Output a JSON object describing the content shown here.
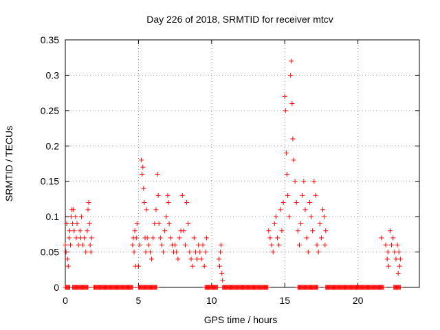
{
  "chart_data": {
    "type": "scatter",
    "title": "Day 226 of 2018, SRMTID for receiver mtcv",
    "xlabel": "GPS time / hours",
    "ylabel": "SRMTID / TECUs",
    "xlim": [
      0,
      24.2
    ],
    "ylim": [
      0,
      0.35
    ],
    "x_ticks": [
      0,
      5,
      10,
      15,
      20
    ],
    "x_tick_labels": [
      "0",
      "5",
      "10",
      "15",
      "20"
    ],
    "y_ticks": [
      0,
      0.05,
      0.1,
      0.15,
      0.2,
      0.25,
      0.3,
      0.35
    ],
    "y_tick_labels": [
      "0",
      "0.05",
      "0.1",
      "0.15",
      "0.2",
      "0.25",
      "0.3",
      "0.35"
    ],
    "grid": true,
    "marker": "plus",
    "color": "#ff0000",
    "series": [
      {
        "name": "SRMTID",
        "points": [
          [
            0.0,
            0.06
          ],
          [
            0.05,
            0.05
          ],
          [
            0.1,
            0.09
          ],
          [
            0.15,
            0.04
          ],
          [
            0.2,
            0.03
          ],
          [
            0.25,
            0.07
          ],
          [
            0.3,
            0.08
          ],
          [
            0.35,
            0.06
          ],
          [
            0.4,
            0.1
          ],
          [
            0.45,
            0.11
          ],
          [
            0.5,
            0.09
          ],
          [
            0.55,
            0.11
          ],
          [
            0.6,
            0.08
          ],
          [
            0.7,
            0.1
          ],
          [
            0.75,
            0.07
          ],
          [
            0.8,
            0.09
          ],
          [
            0.9,
            0.06
          ],
          [
            1.0,
            0.08
          ],
          [
            1.05,
            0.07
          ],
          [
            1.1,
            0.1
          ],
          [
            1.2,
            0.06
          ],
          [
            1.3,
            0.07
          ],
          [
            1.4,
            0.05
          ],
          [
            1.5,
            0.08
          ],
          [
            1.55,
            0.11
          ],
          [
            1.6,
            0.12
          ],
          [
            1.65,
            0.09
          ],
          [
            1.7,
            0.06
          ],
          [
            1.75,
            0.05
          ],
          [
            1.8,
            0.07
          ],
          [
            4.6,
            0.06
          ],
          [
            4.65,
            0.07
          ],
          [
            4.7,
            0.05
          ],
          [
            4.75,
            0.08
          ],
          [
            4.8,
            0.03
          ],
          [
            4.85,
            0.07
          ],
          [
            4.9,
            0.09
          ],
          [
            5.0,
            0.03
          ],
          [
            5.1,
            0.06
          ],
          [
            5.2,
            0.18
          ],
          [
            5.25,
            0.16
          ],
          [
            5.3,
            0.17
          ],
          [
            5.35,
            0.14
          ],
          [
            5.4,
            0.12
          ],
          [
            5.45,
            0.07
          ],
          [
            5.5,
            0.05
          ],
          [
            5.55,
            0.11
          ],
          [
            5.6,
            0.07
          ],
          [
            5.7,
            0.06
          ],
          [
            5.8,
            0.05
          ],
          [
            5.9,
            0.04
          ],
          [
            6.0,
            0.07
          ],
          [
            6.1,
            0.09
          ],
          [
            6.2,
            0.11
          ],
          [
            6.3,
            0.16
          ],
          [
            6.35,
            0.13
          ],
          [
            6.4,
            0.09
          ],
          [
            6.5,
            0.07
          ],
          [
            6.6,
            0.06
          ],
          [
            6.7,
            0.05
          ],
          [
            6.8,
            0.08
          ],
          [
            6.9,
            0.1
          ],
          [
            7.0,
            0.13
          ],
          [
            7.05,
            0.12
          ],
          [
            7.1,
            0.09
          ],
          [
            7.2,
            0.07
          ],
          [
            7.3,
            0.06
          ],
          [
            7.4,
            0.05
          ],
          [
            7.5,
            0.06
          ],
          [
            7.6,
            0.05
          ],
          [
            7.7,
            0.04
          ],
          [
            7.8,
            0.07
          ],
          [
            7.9,
            0.08
          ],
          [
            8.0,
            0.13
          ],
          [
            8.1,
            0.08
          ],
          [
            8.2,
            0.06
          ],
          [
            8.3,
            0.12
          ],
          [
            8.4,
            0.09
          ],
          [
            8.5,
            0.05
          ],
          [
            8.6,
            0.04
          ],
          [
            8.7,
            0.03
          ],
          [
            8.8,
            0.07
          ],
          [
            8.9,
            0.05
          ],
          [
            9.0,
            0.04
          ],
          [
            9.1,
            0.06
          ],
          [
            9.2,
            0.05
          ],
          [
            9.3,
            0.04
          ],
          [
            9.4,
            0.06
          ],
          [
            9.5,
            0.03
          ],
          [
            9.6,
            0.05
          ],
          [
            9.65,
            0.07
          ],
          [
            10.5,
            0.04
          ],
          [
            10.55,
            0.03
          ],
          [
            10.6,
            0.05
          ],
          [
            10.65,
            0.06
          ],
          [
            10.7,
            0.02
          ],
          [
            10.75,
            0.01
          ],
          [
            13.9,
            0.08
          ],
          [
            14.0,
            0.07
          ],
          [
            14.1,
            0.06
          ],
          [
            14.2,
            0.05
          ],
          [
            14.3,
            0.09
          ],
          [
            14.4,
            0.1
          ],
          [
            14.5,
            0.07
          ],
          [
            14.6,
            0.06
          ],
          [
            14.7,
            0.11
          ],
          [
            14.8,
            0.08
          ],
          [
            14.9,
            0.12
          ],
          [
            15.0,
            0.27
          ],
          [
            15.05,
            0.25
          ],
          [
            15.1,
            0.19
          ],
          [
            15.15,
            0.16
          ],
          [
            15.2,
            0.13
          ],
          [
            15.3,
            0.1
          ],
          [
            15.4,
            0.3
          ],
          [
            15.45,
            0.32
          ],
          [
            15.5,
            0.26
          ],
          [
            15.55,
            0.21
          ],
          [
            15.6,
            0.18
          ],
          [
            15.7,
            0.15
          ],
          [
            15.8,
            0.12
          ],
          [
            15.9,
            0.08
          ],
          [
            16.0,
            0.06
          ],
          [
            16.1,
            0.09
          ],
          [
            16.2,
            0.13
          ],
          [
            16.3,
            0.15
          ],
          [
            16.4,
            0.11
          ],
          [
            16.5,
            0.07
          ],
          [
            16.6,
            0.05
          ],
          [
            16.7,
            0.12
          ],
          [
            16.8,
            0.1
          ],
          [
            16.9,
            0.08
          ],
          [
            17.0,
            0.15
          ],
          [
            17.1,
            0.13
          ],
          [
            17.2,
            0.06
          ],
          [
            17.3,
            0.05
          ],
          [
            17.4,
            0.09
          ],
          [
            17.5,
            0.07
          ],
          [
            17.6,
            0.11
          ],
          [
            17.7,
            0.1
          ],
          [
            17.75,
            0.06
          ],
          [
            17.8,
            0.08
          ],
          [
            21.6,
            0.07
          ],
          [
            21.9,
            0.06
          ],
          [
            22.0,
            0.04
          ],
          [
            22.05,
            0.05
          ],
          [
            22.1,
            0.03
          ],
          [
            22.2,
            0.08
          ],
          [
            22.3,
            0.06
          ],
          [
            22.4,
            0.07
          ],
          [
            22.5,
            0.05
          ],
          [
            22.6,
            0.04
          ],
          [
            22.7,
            0.06
          ],
          [
            22.75,
            0.02
          ],
          [
            22.8,
            0.05
          ],
          [
            22.85,
            0.03
          ],
          [
            22.9,
            0.04
          ]
        ]
      }
    ],
    "zero_coverage_ranges": [
      [
        0.0,
        0.3
      ],
      [
        0.5,
        1.05
      ],
      [
        1.1,
        1.55
      ],
      [
        1.95,
        4.6
      ],
      [
        5.0,
        6.25
      ],
      [
        9.55,
        10.4
      ],
      [
        10.75,
        13.85
      ],
      [
        15.9,
        17.25
      ],
      [
        17.8,
        21.75
      ],
      [
        22.45,
        22.9
      ]
    ]
  }
}
